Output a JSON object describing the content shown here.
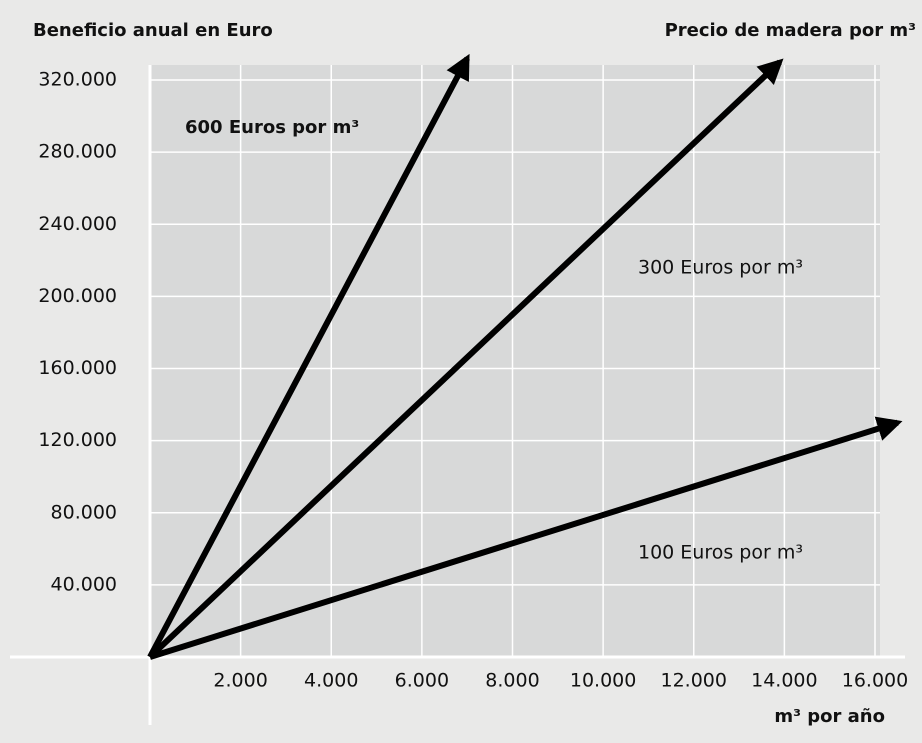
{
  "chart_data": {
    "type": "line",
    "y_label": "Beneficio anual en Euro",
    "legend_title": "Precio de madera por m³",
    "x_label": "m³ por año",
    "xlim": [
      0,
      16000
    ],
    "ylim": [
      0,
      320000
    ],
    "xticks": [
      {
        "value": 2000,
        "label": "2.000"
      },
      {
        "value": 4000,
        "label": "4.000"
      },
      {
        "value": 6000,
        "label": "6.000"
      },
      {
        "value": 8000,
        "label": "8.000"
      },
      {
        "value": 10000,
        "label": "10.000"
      },
      {
        "value": 12000,
        "label": "12.000"
      },
      {
        "value": 14000,
        "label": "14.000"
      },
      {
        "value": 16000,
        "label": "16.000"
      }
    ],
    "yticks": [
      {
        "value": 40000,
        "label": "40.000"
      },
      {
        "value": 80000,
        "label": "80.000"
      },
      {
        "value": 120000,
        "label": "120.000"
      },
      {
        "value": 160000,
        "label": "160.000"
      },
      {
        "value": 200000,
        "label": "200.000"
      },
      {
        "value": 240000,
        "label": "240.000"
      },
      {
        "value": 280000,
        "label": "280.000"
      },
      {
        "value": 320000,
        "label": "320.000"
      }
    ],
    "grid": true,
    "series": [
      {
        "name": "600 Euros por m³",
        "color": "#000000",
        "x": [
          0,
          7000
        ],
        "values": [
          0,
          332000
        ]
      },
      {
        "name": "300 Euros por m³",
        "color": "#000000",
        "x": [
          0,
          13900
        ],
        "values": [
          0,
          330000
        ]
      },
      {
        "name": "100 Euros por m³",
        "color": "#000000",
        "x": [
          0,
          16500
        ],
        "values": [
          0,
          130000
        ]
      }
    ]
  }
}
